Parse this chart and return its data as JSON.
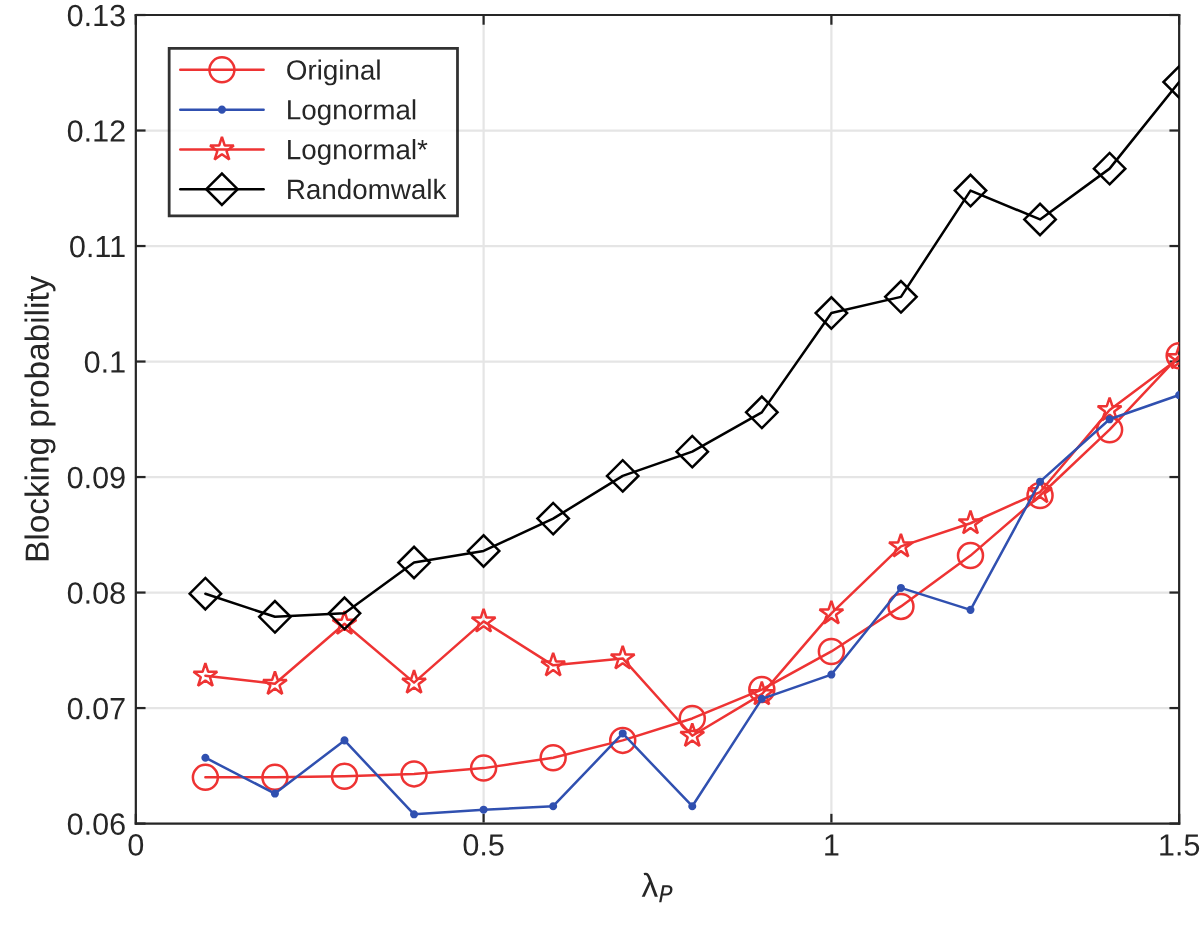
{
  "chart_data": {
    "type": "line",
    "xlabel": "λ$_{P}$",
    "ylabel": "Blocking probability",
    "x": [
      0.1,
      0.2,
      0.3,
      0.4,
      0.5,
      0.6,
      0.7,
      0.8,
      0.9,
      1.0,
      1.1,
      1.2,
      1.3,
      1.4,
      1.5
    ],
    "series": [
      {
        "name": "Original",
        "color": "#ee3333",
        "marker": "circle",
        "values": [
          0.064,
          0.064,
          0.0641,
          0.0643,
          0.0648,
          0.0657,
          0.0672,
          0.0691,
          0.0716,
          0.0749,
          0.0788,
          0.0832,
          0.0884,
          0.0941,
          0.1005
        ]
      },
      {
        "name": "Lognormal",
        "color": "#3050b0",
        "marker": "point",
        "values": [
          0.0657,
          0.0626,
          0.0672,
          0.0608,
          0.0612,
          0.0615,
          0.0678,
          0.0615,
          0.0708,
          0.0729,
          0.0804,
          0.0785,
          0.0896,
          0.095,
          0.0971
        ]
      },
      {
        "name": "Lognormal*",
        "color": "#ee3333",
        "marker": "star",
        "values": [
          0.0728,
          0.0721,
          0.0773,
          0.0722,
          0.0775,
          0.0737,
          0.0743,
          0.0676,
          0.0712,
          0.0782,
          0.084,
          0.086,
          0.0887,
          0.0958,
          0.1003
        ]
      },
      {
        "name": "Randomwalk",
        "color": "#000000",
        "marker": "diamond",
        "values": [
          0.0799,
          0.0779,
          0.0782,
          0.0826,
          0.0836,
          0.0864,
          0.0901,
          0.0922,
          0.0956,
          0.1042,
          0.1056,
          0.1148,
          0.1123,
          0.1167,
          0.1242
        ]
      }
    ],
    "xlim": [
      0,
      1.5
    ],
    "xticks": [
      0,
      0.5,
      1,
      1.5
    ],
    "ylim": [
      0.06,
      0.13
    ],
    "yticks": [
      0.06,
      0.07,
      0.08,
      0.09,
      0.1,
      0.11,
      0.12,
      0.13
    ],
    "grid": true,
    "legend": "top left",
    "line_style": "solid"
  }
}
